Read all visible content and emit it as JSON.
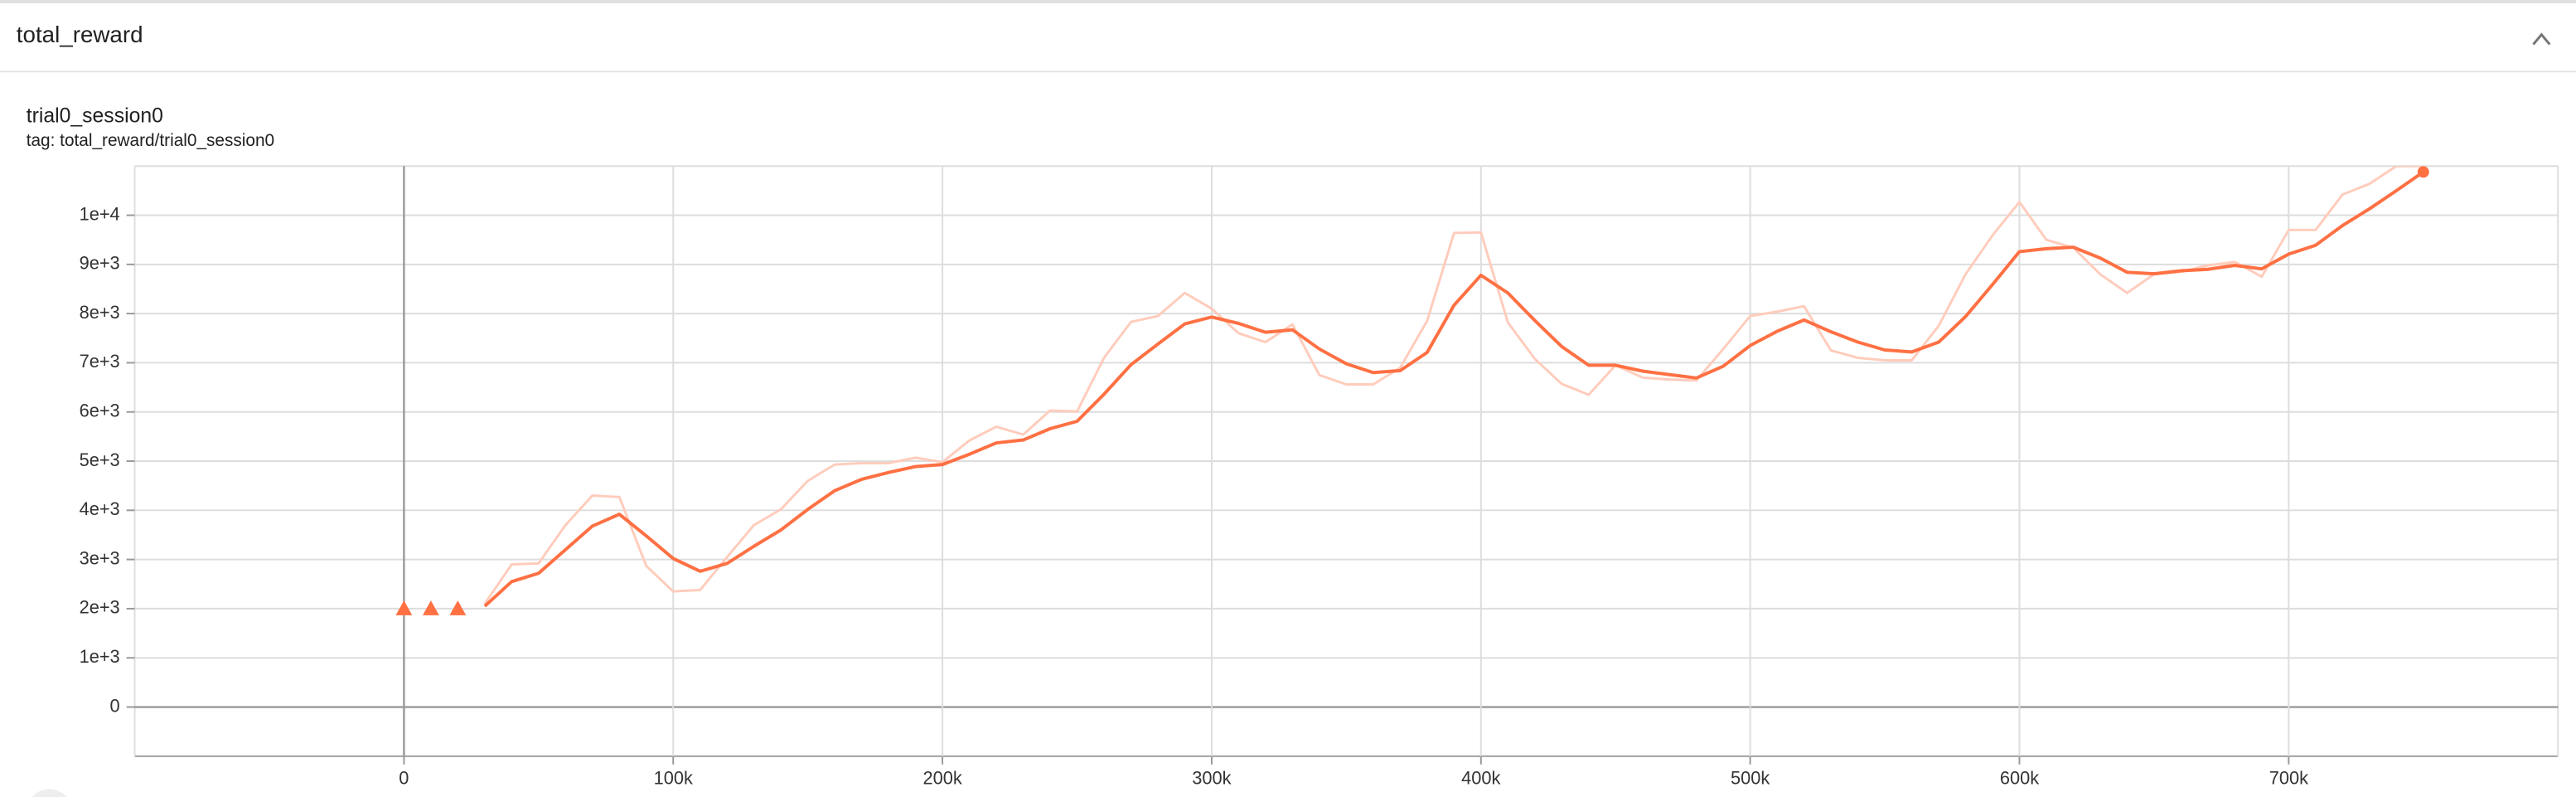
{
  "header_title": "total_reward",
  "chart_data": {
    "type": "line",
    "title": "trial0_session0",
    "subtitle": "tag: total_reward/trial0_session0",
    "x": [
      30000,
      40000,
      50000,
      60000,
      70000,
      80000,
      90000,
      100000,
      110000,
      120000,
      130000,
      140000,
      150000,
      160000,
      170000,
      180000,
      190000,
      200000,
      210000,
      220000,
      230000,
      240000,
      250000,
      260000,
      270000,
      280000,
      290000,
      300000,
      310000,
      320000,
      330000,
      340000,
      350000,
      360000,
      370000,
      380000,
      390000,
      400000,
      410000,
      420000,
      430000,
      440000,
      450000,
      460000,
      470000,
      480000,
      490000,
      500000,
      510000,
      520000,
      530000,
      540000,
      550000,
      560000,
      570000,
      580000,
      590000,
      600000,
      610000,
      620000,
      630000,
      640000,
      650000,
      660000,
      670000,
      680000,
      690000,
      700000,
      710000,
      720000,
      730000,
      740000,
      750000
    ],
    "series": [
      {
        "color": "#ffccbc",
        "values": [
          2100,
          2900,
          2920,
          3700,
          4300,
          4270,
          2870,
          2350,
          2380,
          3050,
          3700,
          4020,
          4600,
          4930,
          4960,
          4960,
          5070,
          4980,
          5420,
          5700,
          5540,
          6030,
          6010,
          7100,
          7830,
          7950,
          8420,
          8100,
          7600,
          7420,
          7780,
          6750,
          6560,
          6560,
          6900,
          7850,
          9640,
          9650,
          7820,
          7080,
          6570,
          6350,
          6950,
          6700,
          6660,
          6640,
          7280,
          7950,
          8040,
          8150,
          7250,
          7100,
          7050,
          7050,
          7750,
          8800,
          9590,
          10270,
          9500,
          9340,
          8800,
          8420,
          8800,
          8850,
          8980,
          9050,
          8750,
          9700,
          9700,
          10420,
          10640,
          11000,
          11000
        ]
      },
      {
        "color": "#ff7043",
        "values": [
          2050,
          2550,
          2720,
          3200,
          3680,
          3920,
          3480,
          3020,
          2760,
          2920,
          3270,
          3600,
          4020,
          4400,
          4630,
          4770,
          4890,
          4930,
          5140,
          5370,
          5430,
          5660,
          5810,
          6360,
          6960,
          7380,
          7790,
          7930,
          7800,
          7620,
          7670,
          7280,
          6980,
          6800,
          6840,
          7210,
          8170,
          8780,
          8420,
          7860,
          7330,
          6950,
          6950,
          6830,
          6760,
          6690,
          6930,
          7350,
          7640,
          7870,
          7630,
          7420,
          7260,
          7220,
          7420,
          7940,
          8590,
          9260,
          9320,
          9350,
          9130,
          8840,
          8810,
          8870,
          8900,
          8980,
          8910,
          9210,
          9390,
          9790,
          10130,
          10500,
          10880
        ]
      }
    ],
    "markers": {
      "x": [
        0,
        10000,
        20000
      ],
      "values": [
        2000,
        2000,
        2000
      ],
      "color": "#ff7043"
    },
    "xlim": [
      -100000,
      800000
    ],
    "ylim": [
      -1000,
      11000
    ],
    "xticks": [
      0,
      {
        "value": 100000,
        "label": "100k"
      },
      {
        "value": 200000,
        "label": "200k"
      },
      {
        "value": 300000,
        "label": "300k"
      },
      {
        "value": 400000,
        "label": "400k"
      },
      {
        "value": 500000,
        "label": "500k"
      },
      {
        "value": 600000,
        "label": "600k"
      },
      {
        "value": 700000,
        "label": "700k"
      }
    ],
    "yticks": [
      0,
      {
        "value": 1000,
        "label": "1e+3"
      },
      {
        "value": 2000,
        "label": "2e+3"
      },
      {
        "value": 3000,
        "label": "3e+3"
      },
      {
        "value": 4000,
        "label": "4e+3"
      },
      {
        "value": 5000,
        "label": "5e+3"
      },
      {
        "value": 6000,
        "label": "6e+3"
      },
      {
        "value": 7000,
        "label": "7e+3"
      },
      {
        "value": 8000,
        "label": "8e+3"
      },
      {
        "value": 9000,
        "label": "9e+3"
      },
      {
        "value": 10000,
        "label": "1e+4"
      }
    ],
    "grid": true
  }
}
